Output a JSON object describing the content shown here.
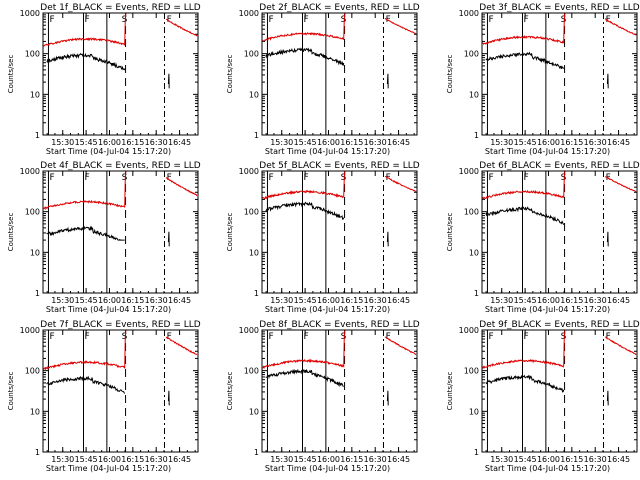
{
  "chart_data": [
    {
      "type": "line",
      "title": "Det 1f_BLACK = Events, RED = LLD",
      "ylabel": "Counts/sec",
      "xlabel": "Start Time (04-Jul-04 15:17:20)",
      "x_ticks": [
        "15:30",
        "15:45",
        "16:00",
        "16:15",
        "16:30",
        "16:45"
      ],
      "y_ticks": [
        "1",
        "10",
        "100",
        "1000"
      ],
      "ylim": [
        1,
        1000
      ],
      "y_scale": "log",
      "markers": [
        "F",
        "F",
        "S",
        "F"
      ],
      "colors": {
        "events": "#000000",
        "lld": "#e00000"
      }
    },
    {
      "type": "line",
      "title": "Det 2f_BLACK = Events, RED = LLD",
      "ylabel": "Counts/sec",
      "xlabel": "Start Time (04-Jul-04 15:17:20)",
      "x_ticks": [
        "15:30",
        "15:45",
        "16:00",
        "16:15",
        "16:30",
        "16:45"
      ],
      "y_ticks": [
        "1",
        "10",
        "100",
        "1000"
      ],
      "ylim": [
        1,
        1000
      ],
      "y_scale": "log",
      "markers": [
        "F",
        "F",
        "S",
        "F"
      ],
      "colors": {
        "events": "#000000",
        "lld": "#e00000"
      }
    },
    {
      "type": "line",
      "title": "Det 3f_BLACK = Events, RED = LLD",
      "ylabel": "Counts/sec",
      "xlabel": "Start Time (04-Jul-04 15:17:20)",
      "x_ticks": [
        "15:30",
        "15:45",
        "16:00",
        "16:15",
        "16:30",
        "16:45"
      ],
      "y_ticks": [
        "1",
        "10",
        "100",
        "1000"
      ],
      "ylim": [
        1,
        1000
      ],
      "y_scale": "log",
      "markers": [
        "F",
        "F",
        "S",
        "F"
      ],
      "colors": {
        "events": "#000000",
        "lld": "#e00000"
      }
    },
    {
      "type": "line",
      "title": "Det 4f_BLACK = Events, RED = LLD",
      "ylabel": "Counts/sec",
      "xlabel": "Start Time (04-Jul-04 15:17:20)",
      "x_ticks": [
        "15:30",
        "15:45",
        "16:00",
        "16:15",
        "16:30",
        "16:45"
      ],
      "y_ticks": [
        "1",
        "10",
        "100",
        "1000"
      ],
      "ylim": [
        1,
        1000
      ],
      "y_scale": "log",
      "markers": [
        "F",
        "F",
        "S",
        "F"
      ],
      "colors": {
        "events": "#000000",
        "lld": "#e00000"
      }
    },
    {
      "type": "line",
      "title": "Det 5f_BLACK = Events, RED = LLD",
      "ylabel": "Counts/sec",
      "xlabel": "Start Time (04-Jul-04 15:17:20)",
      "x_ticks": [
        "15:30",
        "15:45",
        "16:00",
        "16:15",
        "16:30",
        "16:45"
      ],
      "y_ticks": [
        "1",
        "10",
        "100",
        "1000"
      ],
      "ylim": [
        1,
        1000
      ],
      "y_scale": "log",
      "markers": [
        "F",
        "F",
        "S",
        "F"
      ],
      "colors": {
        "events": "#000000",
        "lld": "#e00000"
      }
    },
    {
      "type": "line",
      "title": "Det 6f_BLACK = Events, RED = LLD",
      "ylabel": "Counts/sec",
      "xlabel": "Start Time (04-Jul-04 15:17:20)",
      "x_ticks": [
        "15:30",
        "15:45",
        "16:00",
        "16:15",
        "16:30",
        "16:45"
      ],
      "y_ticks": [
        "1",
        "10",
        "100",
        "1000"
      ],
      "ylim": [
        1,
        1000
      ],
      "y_scale": "log",
      "markers": [
        "F",
        "F",
        "S",
        "F"
      ],
      "colors": {
        "events": "#000000",
        "lld": "#e00000"
      }
    },
    {
      "type": "line",
      "title": "Det 7f_BLACK = Events, RED = LLD",
      "ylabel": "Counts/sec",
      "xlabel": "Start Time (04-Jul-04 15:17:20)",
      "x_ticks": [
        "15:30",
        "15:45",
        "16:00",
        "16:15",
        "16:30",
        "16:45"
      ],
      "y_ticks": [
        "1",
        "10",
        "100",
        "1000"
      ],
      "ylim": [
        1,
        1000
      ],
      "y_scale": "log",
      "markers": [
        "F",
        "F",
        "S",
        "F"
      ],
      "colors": {
        "events": "#000000",
        "lld": "#e00000"
      }
    },
    {
      "type": "line",
      "title": "Det 8f_BLACK = Events, RED = LLD",
      "ylabel": "Counts/sec",
      "xlabel": "Start Time (04-Jul-04 15:17:20)",
      "x_ticks": [
        "15:30",
        "15:45",
        "16:00",
        "16:15",
        "16:30",
        "16:45"
      ],
      "y_ticks": [
        "1",
        "10",
        "100",
        "1000"
      ],
      "ylim": [
        1,
        1000
      ],
      "y_scale": "log",
      "markers": [
        "F",
        "F",
        "S",
        "F"
      ],
      "colors": {
        "events": "#000000",
        "lld": "#e00000"
      }
    },
    {
      "type": "line",
      "title": "Det 9f_BLACK = Events, RED = LLD",
      "ylabel": "Counts/sec",
      "xlabel": "Start Time (04-Jul-04 15:17:20)",
      "x_ticks": [
        "15:30",
        "15:45",
        "16:00",
        "16:15",
        "16:30",
        "16:45"
      ],
      "y_ticks": [
        "1",
        "10",
        "100",
        "1000"
      ],
      "ylim": [
        1,
        1000
      ],
      "y_scale": "log",
      "markers": [
        "F",
        "F",
        "S",
        "F"
      ],
      "colors": {
        "events": "#000000",
        "lld": "#e00000"
      }
    }
  ]
}
